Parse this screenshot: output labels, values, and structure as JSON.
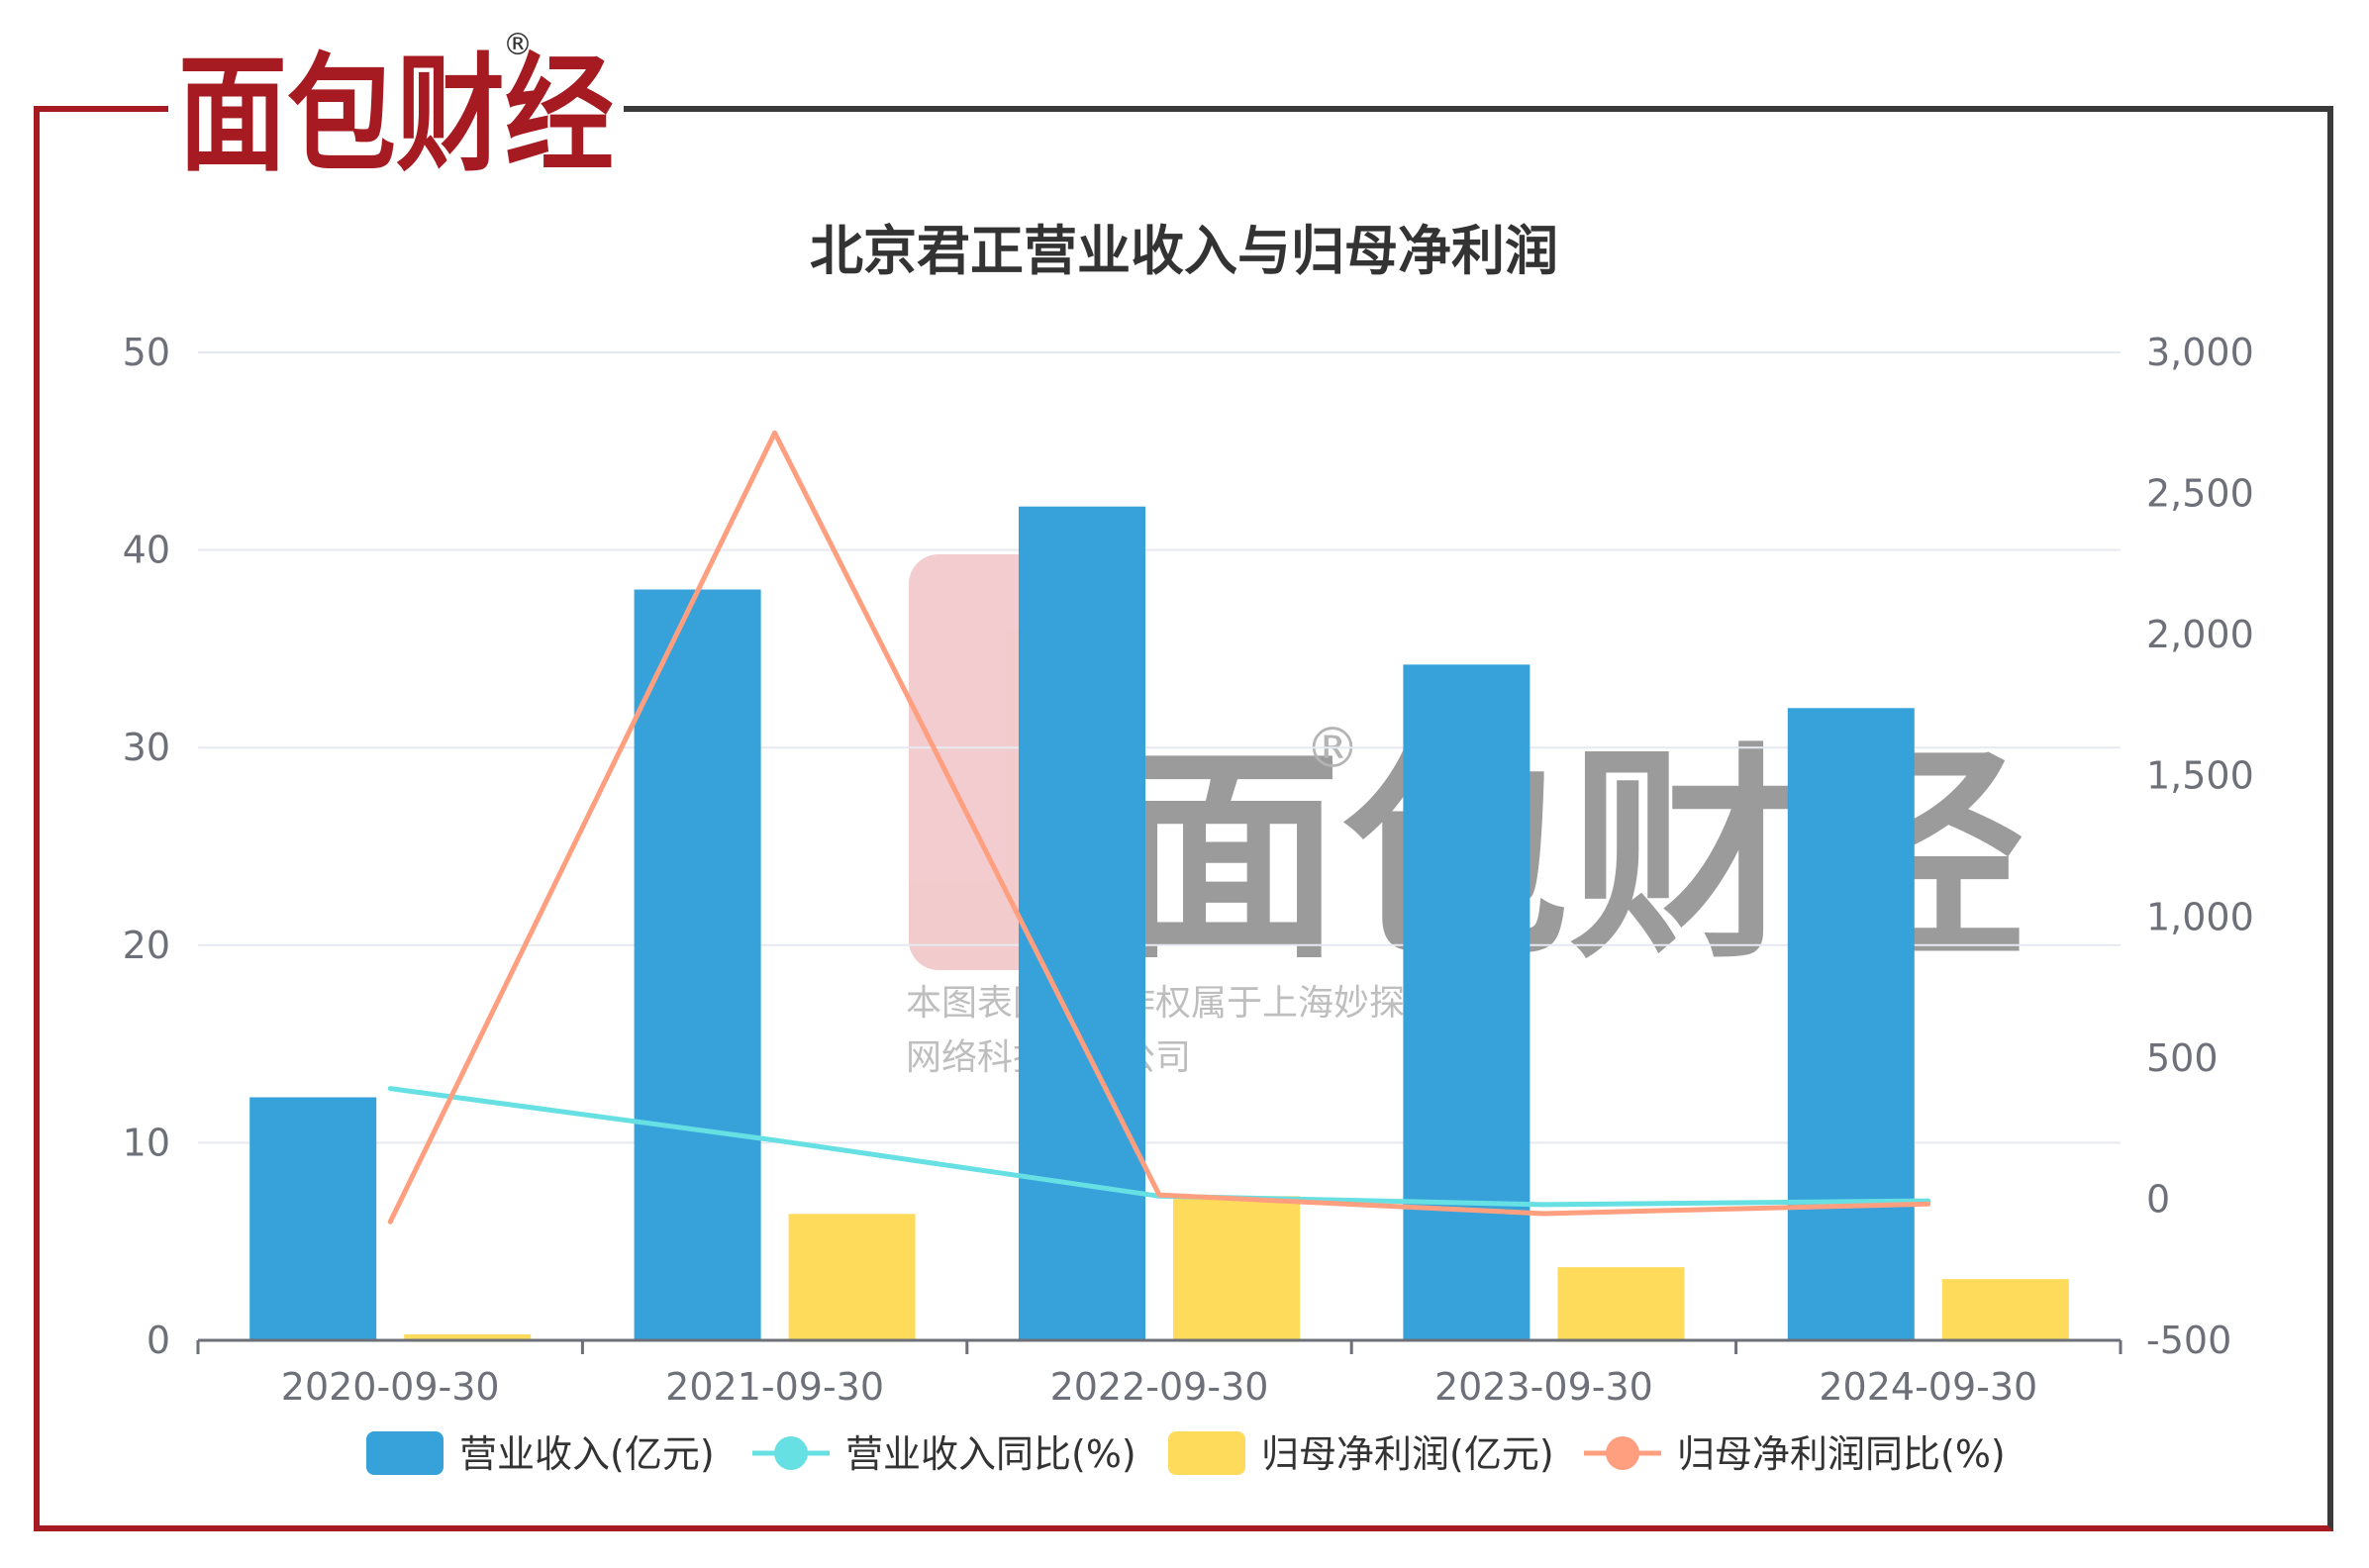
{
  "brand": {
    "logo_text": "面包财经",
    "registered_mark": "®"
  },
  "watermark": {
    "logo_text": "面包财经",
    "registered_mark": "®",
    "line1": "本图表图片著作权属于上海妙探",
    "line2": "网络科技有限公司"
  },
  "colors": {
    "revenue": "#37a2da",
    "revenue_yoy": "#67e0e3",
    "net_profit": "#ffdb5c",
    "net_profit_yoy": "#ff9f7f",
    "frame_red": "#a61b22",
    "frame_dark": "#3a3a3a",
    "grid": "#e6e9f0",
    "axis_text": "#6e7079"
  },
  "chart_data": {
    "type": "bar",
    "title": "北京君正营业收入与归母净利润",
    "categories": [
      "2020-09-30",
      "2021-09-30",
      "2022-09-30",
      "2023-09-30",
      "2024-09-30"
    ],
    "y_left": {
      "range": [
        0,
        50
      ],
      "ticks": [
        "0",
        "10",
        "20",
        "30",
        "40",
        "50"
      ]
    },
    "y_right": {
      "range": [
        -500,
        3000
      ],
      "ticks": [
        "-500",
        "0",
        "500",
        "1,000",
        "1,500",
        "2,000",
        "2,500",
        "3,000"
      ]
    },
    "series": [
      {
        "name": "营业收入(亿元)",
        "kind": "bar",
        "axis": "left",
        "values": [
          12.3,
          38.0,
          42.2,
          34.2,
          32.0
        ]
      },
      {
        "name": "营业收入同比(%)",
        "kind": "line",
        "axis": "right",
        "values": [
          392,
          209,
          11,
          -19,
          -6
        ]
      },
      {
        "name": "归母净利润(亿元)",
        "kind": "bar",
        "axis": "left",
        "values": [
          0.3,
          6.4,
          7.3,
          3.7,
          3.1
        ]
      },
      {
        "name": "归母净利润同比(%)",
        "kind": "line",
        "axis": "right",
        "values": [
          -80,
          2715,
          15,
          -51,
          -17
        ]
      }
    ],
    "grid": true,
    "legend_position": "bottom"
  }
}
